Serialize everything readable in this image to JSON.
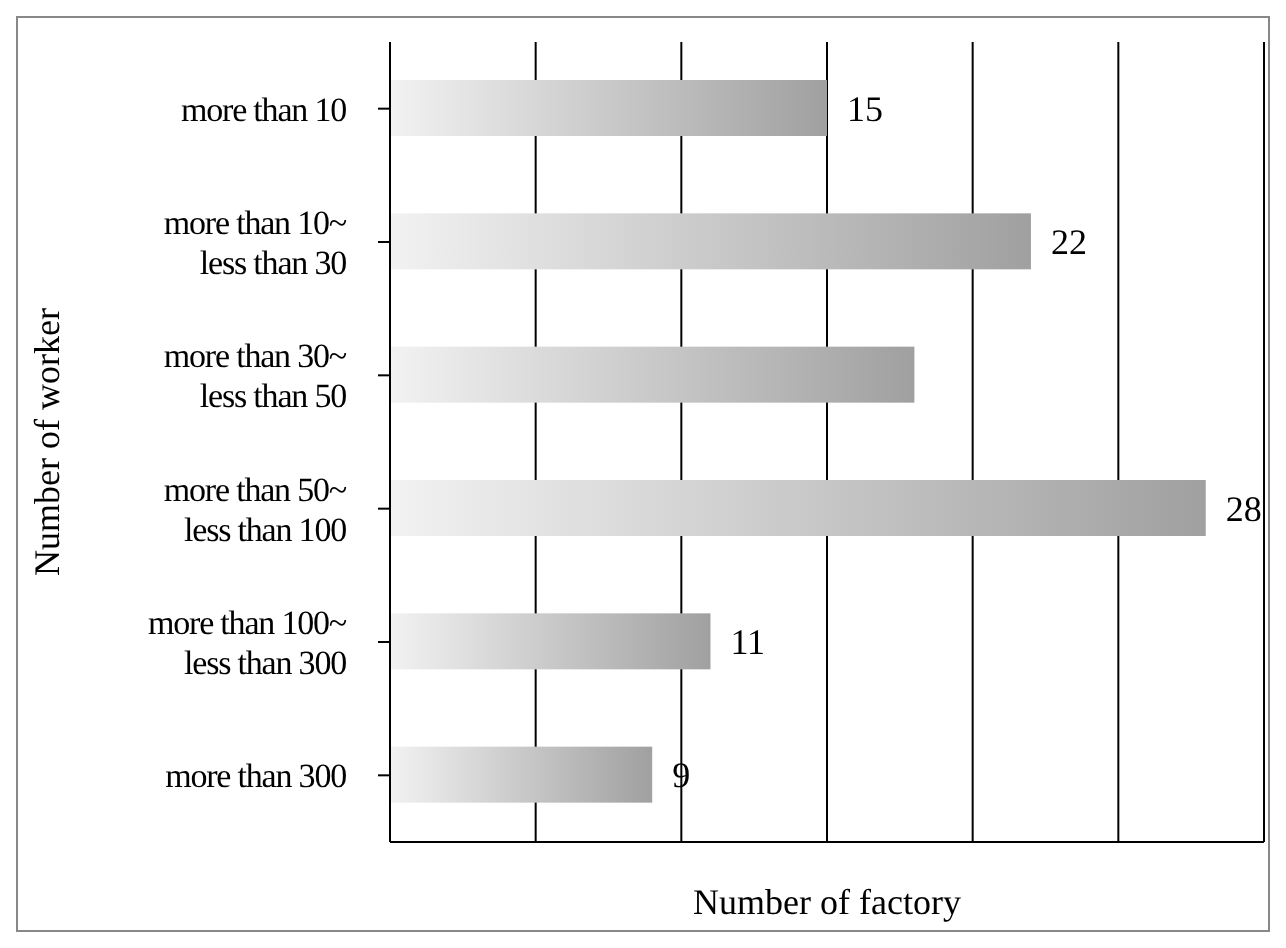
{
  "chart_data": {
    "type": "bar",
    "orientation": "horizontal",
    "xlabel": "Number of factory",
    "ylabel": "Number of worker",
    "categories": [
      "more than 10",
      "more than 10~\nless than 30",
      "more than 30~\nless than 50",
      "more than 50~\nless than 100",
      "more than 100~\nless than 300",
      "more than 300"
    ],
    "values": [
      15,
      22,
      18,
      28,
      11,
      9
    ],
    "value_labels": [
      "15",
      "22",
      null,
      "28",
      "11",
      "9"
    ],
    "color": "#a0a0a0",
    "xlim": [
      0,
      30
    ],
    "grid": "x",
    "tick_labels": "y"
  }
}
